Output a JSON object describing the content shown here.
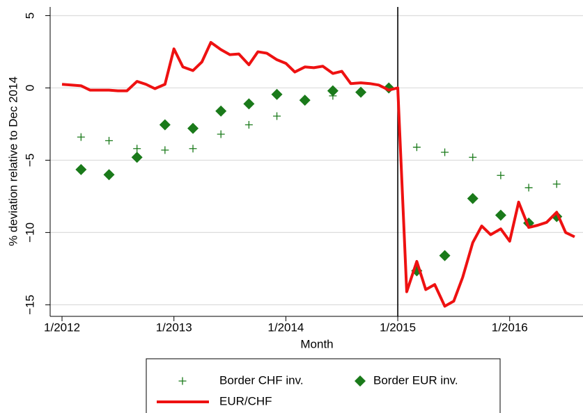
{
  "chart_data": {
    "type": "line",
    "x_label": "Month",
    "y_label": "% deviation relative to Dec 2014",
    "xlim": [
      2011.894,
      2016.655
    ],
    "xticks": [
      {
        "value": 2012,
        "label": "1/2012"
      },
      {
        "value": 2013,
        "label": "1/2013"
      },
      {
        "value": 2014,
        "label": "1/2014"
      },
      {
        "value": 2015,
        "label": "1/2015"
      },
      {
        "value": 2016,
        "label": "1/2016"
      }
    ],
    "ylim": [
      -15.8,
      5.6
    ],
    "yticks": [
      {
        "value": -15,
        "label": "−15"
      },
      {
        "value": -10,
        "label": "−10"
      },
      {
        "value": -5,
        "label": "−5"
      },
      0,
      5
    ],
    "grid": true,
    "vline": 2015,
    "legend": "bottom",
    "series": [
      {
        "name": "Border CHF inv.",
        "mode": "plus",
        "color": "#1a7a1a",
        "x": [
          2012.17,
          2012.42,
          2012.67,
          2012.92,
          2013.17,
          2013.42,
          2013.67,
          2013.92,
          2014.17,
          2014.42,
          2014.67,
          2014.92,
          2015.17,
          2015.42,
          2015.67,
          2015.92,
          2016.17,
          2016.42
        ],
        "values": [
          -3.4,
          -3.65,
          -4.2,
          -4.3,
          -4.2,
          -3.2,
          -2.55,
          -1.95,
          -0.9,
          -0.55,
          -0.3,
          0,
          -4.1,
          -4.45,
          -4.8,
          -6.05,
          -6.9,
          -6.65
        ]
      },
      {
        "name": "Border EUR inv.",
        "mode": "diamond",
        "color": "#1a7a1a",
        "x": [
          2012.17,
          2012.42,
          2012.67,
          2012.92,
          2013.17,
          2013.42,
          2013.67,
          2013.92,
          2014.17,
          2014.42,
          2014.67,
          2014.92,
          2015.17,
          2015.42,
          2015.67,
          2015.92,
          2016.17,
          2016.42
        ],
        "values": [
          -5.65,
          -6.0,
          -4.8,
          -2.55,
          -2.8,
          -1.6,
          -1.1,
          -0.45,
          -0.85,
          -0.2,
          -0.3,
          0,
          -12.65,
          -11.6,
          -7.65,
          -8.8,
          -9.35,
          -8.9
        ]
      },
      {
        "name": "EUR/CHF",
        "mode": "line",
        "color": "#ee1111",
        "x": [
          2012.0,
          2012.08,
          2012.17,
          2012.25,
          2012.33,
          2012.42,
          2012.5,
          2012.58,
          2012.67,
          2012.75,
          2012.83,
          2012.92,
          2013.0,
          2013.08,
          2013.17,
          2013.25,
          2013.33,
          2013.42,
          2013.5,
          2013.58,
          2013.67,
          2013.75,
          2013.83,
          2013.92,
          2014.0,
          2014.08,
          2014.17,
          2014.25,
          2014.33,
          2014.42,
          2014.5,
          2014.58,
          2014.67,
          2014.75,
          2014.83,
          2014.92,
          2015.0,
          2015.08,
          2015.17,
          2015.25,
          2015.33,
          2015.42,
          2015.5,
          2015.58,
          2015.67,
          2015.75,
          2015.83,
          2015.92,
          2016.0,
          2016.08,
          2016.17,
          2016.25,
          2016.33,
          2016.42,
          2016.5,
          2016.58
        ],
        "values": [
          0.25,
          0.2,
          0.15,
          -0.15,
          -0.15,
          -0.15,
          -0.2,
          -0.2,
          0.45,
          0.25,
          -0.05,
          0.25,
          2.7,
          1.45,
          1.2,
          1.8,
          3.15,
          2.65,
          2.3,
          2.35,
          1.6,
          2.5,
          2.4,
          1.95,
          1.7,
          1.1,
          1.45,
          1.4,
          1.5,
          1.0,
          1.15,
          0.3,
          0.35,
          0.3,
          0.2,
          -0.15,
          0,
          -14.1,
          -12.0,
          -13.95,
          -13.6,
          -15.1,
          -14.75,
          -13.1,
          -10.7,
          -9.55,
          -10.15,
          -9.75,
          -10.6,
          -7.9,
          -9.65,
          -9.5,
          -9.3,
          -8.6,
          -10.0,
          -10.3
        ]
      }
    ]
  }
}
